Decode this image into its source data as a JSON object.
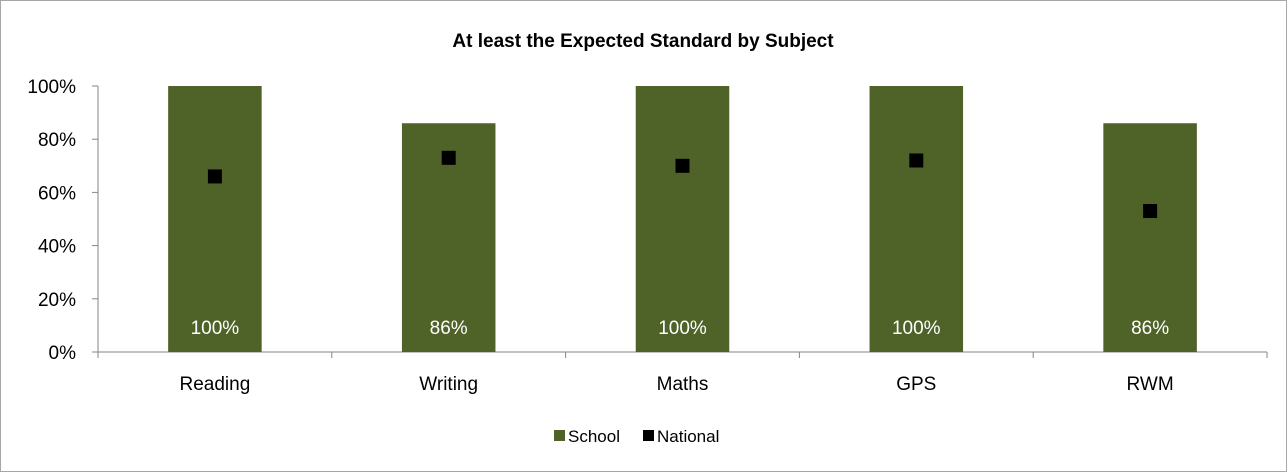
{
  "chart_data": {
    "type": "bar",
    "title": "At least the Expected Standard by Subject",
    "categories": [
      "Reading",
      "Writing",
      "Maths",
      "GPS",
      "RWM"
    ],
    "series": [
      {
        "name": "School",
        "kind": "bar",
        "color": "#4f6228",
        "values": [
          100,
          86,
          100,
          100,
          86
        ],
        "labels": [
          "100%",
          "86%",
          "100%",
          "100%",
          "86%"
        ]
      },
      {
        "name": "National",
        "kind": "marker",
        "color": "#000000",
        "values": [
          66,
          73,
          70,
          72,
          53
        ]
      }
    ],
    "ylim": [
      0,
      100
    ],
    "yticks": [
      "0%",
      "20%",
      "40%",
      "60%",
      "80%",
      "100%"
    ],
    "grid": false,
    "legend": "bottom"
  }
}
